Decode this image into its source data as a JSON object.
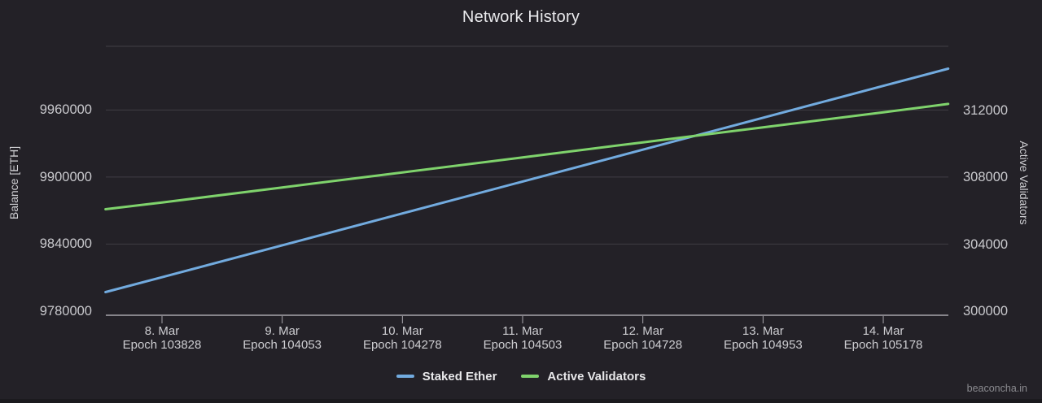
{
  "title": "Network History",
  "watermark": "beaconcha.in",
  "legend": {
    "items": [
      {
        "label": "Staked Ether",
        "color": "#72abdf"
      },
      {
        "label": "Active Validators",
        "color": "#7fd36c"
      }
    ]
  },
  "colors": {
    "background": "#232127",
    "grid": "#403e45",
    "axis": "#a8a6ac",
    "tick_text": "#c9c9cd",
    "series_blue": "#72abdf",
    "series_green": "#7fd36c"
  },
  "chart_data": {
    "type": "line",
    "title": "Network History",
    "grid": true,
    "legend_position": "bottom",
    "x_axis": {
      "unit": "days (1 day = 225 epochs)",
      "ticks": [
        {
          "day": 0,
          "date": "8. Mar",
          "epoch_label": "Epoch 103828"
        },
        {
          "day": 1,
          "date": "9. Mar",
          "epoch_label": "Epoch 104053"
        },
        {
          "day": 2,
          "date": "10. Mar",
          "epoch_label": "Epoch 104278"
        },
        {
          "day": 3,
          "date": "11. Mar",
          "epoch_label": "Epoch 104503"
        },
        {
          "day": 4,
          "date": "12. Mar",
          "epoch_label": "Epoch 104728"
        },
        {
          "day": 5,
          "date": "13. Mar",
          "epoch_label": "Epoch 104953"
        },
        {
          "day": 6,
          "date": "14. Mar",
          "epoch_label": "Epoch 105178"
        }
      ],
      "range_days": [
        -0.47,
        6.54
      ]
    },
    "y_left": {
      "title": "Balance [ETH]",
      "min": 9777000,
      "max": 10017000,
      "ticks": [
        9780000,
        9840000,
        9900000,
        9960000
      ]
    },
    "y_right": {
      "title": "Active Validators",
      "min": 299800,
      "max": 315850,
      "ticks": [
        300000,
        304000,
        308000,
        312000
      ]
    },
    "series": [
      {
        "name": "Staked Ether",
        "axis": "left",
        "color": "#72abdf",
        "points": [
          [
            -0.47,
            9797000
          ],
          [
            0,
            9810300
          ],
          [
            1,
            9838900
          ],
          [
            2,
            9867400
          ],
          [
            3,
            9896000
          ],
          [
            4,
            9924500
          ],
          [
            5,
            9953100
          ],
          [
            6,
            9981600
          ],
          [
            6.54,
            9997000
          ]
        ]
      },
      {
        "name": "Active Validators",
        "axis": "right",
        "color": "#7fd36c",
        "points": [
          [
            -0.47,
            306100
          ],
          [
            0,
            306500
          ],
          [
            1,
            307400
          ],
          [
            2,
            308300
          ],
          [
            3,
            309200
          ],
          [
            4,
            310100
          ],
          [
            5,
            311000
          ],
          [
            6,
            311900
          ],
          [
            6.54,
            312400
          ]
        ]
      }
    ]
  }
}
